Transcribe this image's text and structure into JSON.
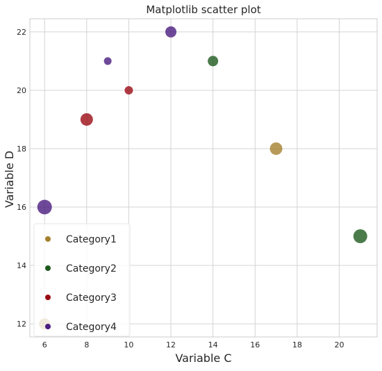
{
  "chart_data": {
    "type": "scatter",
    "title": "Matplotlib scatter plot",
    "xlabel": "Variable C",
    "ylabel": "Variable D",
    "xlim": [
      5.3,
      21.8
    ],
    "ylim": [
      11.55,
      22.45
    ],
    "x_ticks": [
      6,
      8,
      10,
      12,
      14,
      16,
      18,
      20
    ],
    "y_ticks": [
      12,
      14,
      16,
      18,
      20,
      22
    ],
    "grid": true,
    "legend_position": "lower-left",
    "series": [
      {
        "name": "Category1",
        "color": "#a5812e",
        "points": [
          {
            "x": 17,
            "y": 18,
            "size": 9
          },
          {
            "x": 6,
            "y": 12,
            "size": 8
          }
        ]
      },
      {
        "name": "Category2",
        "color": "#1e5a1e",
        "points": [
          {
            "x": 14,
            "y": 21,
            "size": 7.5
          },
          {
            "x": 21,
            "y": 15,
            "size": 10
          }
        ]
      },
      {
        "name": "Category3",
        "color": "#9b0a14",
        "points": [
          {
            "x": 8,
            "y": 19,
            "size": 9
          },
          {
            "x": 10,
            "y": 20,
            "size": 6
          }
        ]
      },
      {
        "name": "Category4",
        "color": "#4b1c80",
        "points": [
          {
            "x": 12,
            "y": 22,
            "size": 8
          },
          {
            "x": 9,
            "y": 21,
            "size": 5.5
          },
          {
            "x": 6,
            "y": 16,
            "size": 10.5
          }
        ]
      }
    ]
  }
}
